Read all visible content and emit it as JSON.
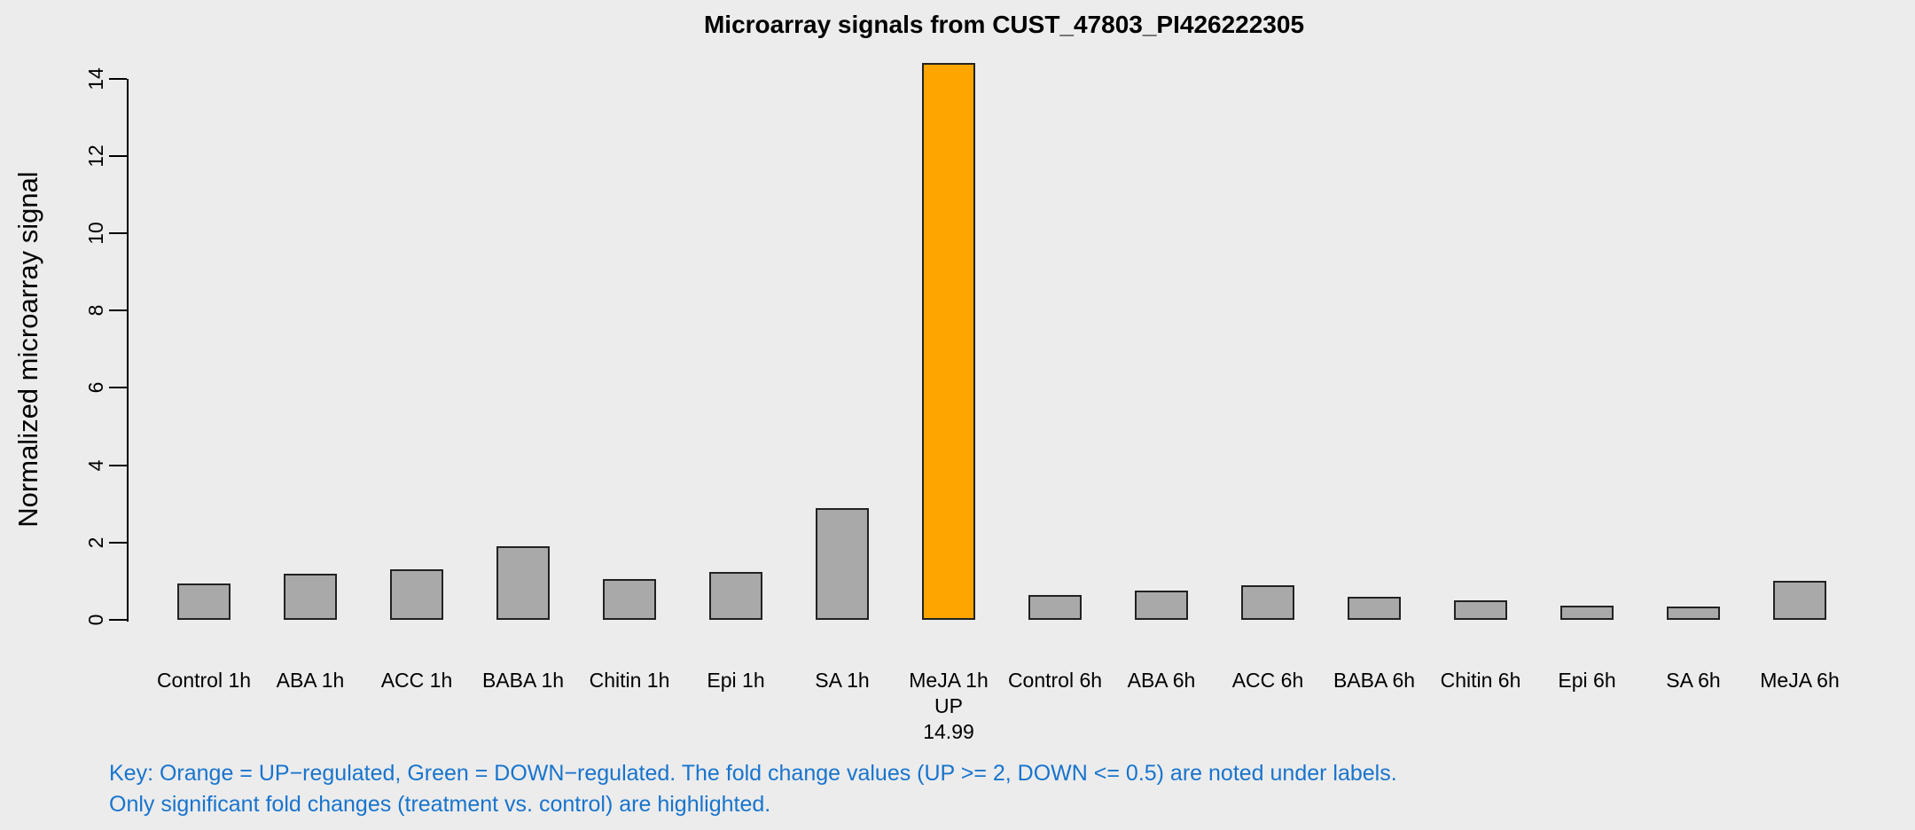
{
  "figure": {
    "background_color": "#ECECEC"
  },
  "chart_data": {
    "type": "bar",
    "title": "Microarray signals from CUST_47803_PI426222305",
    "ylabel": "Normalized microarray signal",
    "xlabel": "",
    "ylim": [
      0,
      14.66
    ],
    "yticks": [
      0,
      2,
      4,
      6,
      8,
      10,
      12,
      14
    ],
    "grid": false,
    "legend": null,
    "bar_default_color": "#A9A9A9",
    "bar_border_color": "#222222",
    "highlight_up_color": "#FFA500",
    "categories": [
      "Control 1h",
      "ABA 1h",
      "ACC 1h",
      "BABA 1h",
      "Chitin 1h",
      "Epi 1h",
      "SA 1h",
      "MeJA 1h",
      "Control 6h",
      "ABA 6h",
      "ACC 6h",
      "BABA 6h",
      "Chitin 6h",
      "Epi 6h",
      "SA 6h",
      "MeJA 6h"
    ],
    "values": [
      0.95,
      1.2,
      1.3,
      1.9,
      1.05,
      1.25,
      2.9,
      14.4,
      0.65,
      0.75,
      0.9,
      0.6,
      0.5,
      0.37,
      0.35,
      1.0
    ],
    "bars": [
      {
        "label": "Control 1h",
        "value": 0.95
      },
      {
        "label": "ABA 1h",
        "value": 1.2
      },
      {
        "label": "ACC 1h",
        "value": 1.3
      },
      {
        "label": "BABA 1h",
        "value": 1.9
      },
      {
        "label": "Chitin 1h",
        "value": 1.05
      },
      {
        "label": "Epi 1h",
        "value": 1.25
      },
      {
        "label": "SA 1h",
        "value": 2.9
      },
      {
        "label": "MeJA 1h",
        "value": 14.4,
        "color": "#FFA500",
        "sublabels": [
          "UP",
          "14.99"
        ]
      },
      {
        "label": "Control 6h",
        "value": 0.65
      },
      {
        "label": "ABA 6h",
        "value": 0.75
      },
      {
        "label": "ACC 6h",
        "value": 0.9
      },
      {
        "label": "BABA 6h",
        "value": 0.6
      },
      {
        "label": "Chitin 6h",
        "value": 0.5
      },
      {
        "label": "Epi 6h",
        "value": 0.37
      },
      {
        "label": "SA 6h",
        "value": 0.35
      },
      {
        "label": "MeJA 6h",
        "value": 1.0
      }
    ]
  },
  "key": {
    "text_color": "#1874CD",
    "lines": [
      "Key: Orange = UP−regulated, Green = DOWN−regulated. The fold change values (UP >= 2, DOWN <= 0.5) are noted under labels.",
      "Only significant fold changes (treatment vs. control) are highlighted."
    ]
  }
}
